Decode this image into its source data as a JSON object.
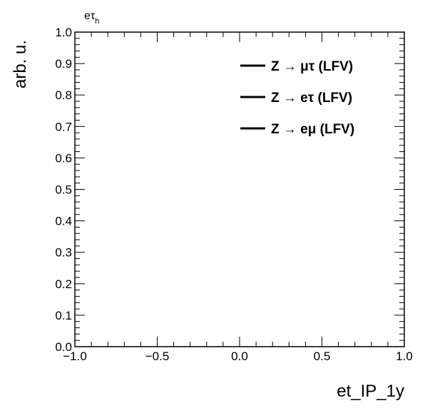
{
  "chart_data": {
    "type": "line",
    "channel_label": {
      "main": "eτ",
      "sub": "h"
    },
    "xlabel": "et_IP_1y",
    "ylabel": "arb. u.",
    "xlim": [
      -1.0,
      1.0
    ],
    "ylim": [
      0.0,
      1.0
    ],
    "x_ticks": [
      "−1.0",
      "−0.5",
      "0.0",
      "0.5",
      "1.0"
    ],
    "y_ticks": [
      "0.0",
      "0.1",
      "0.2",
      "0.3",
      "0.4",
      "0.5",
      "0.6",
      "0.7",
      "0.8",
      "0.9",
      "1.0"
    ],
    "legend_position": "top-right",
    "series": [
      {
        "name": "Z → μτ (LFV)",
        "color": "#000000",
        "values": []
      },
      {
        "name": "Z → eτ (LFV)",
        "color": "#000000",
        "values": []
      },
      {
        "name": "Z → eμ (LFV)",
        "color": "#000000",
        "values": []
      }
    ],
    "grid": false
  }
}
